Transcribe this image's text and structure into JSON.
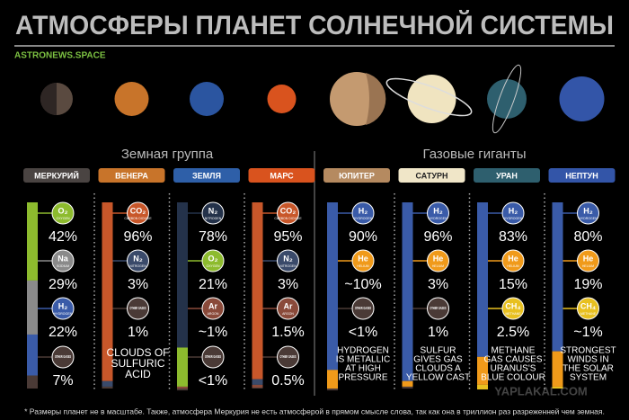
{
  "header": {
    "title": "АТМОСФЕРЫ ПЛАНЕТ СОЛНЕЧНОЙ СИСТЕМЫ",
    "source": "ASTRONEWS.SPACE"
  },
  "groups": [
    "Земная группа",
    "Газовые гиганты"
  ],
  "planets": [
    {
      "name": "МЕРКУРИЙ",
      "color": "#4a4442",
      "text_color": "#ffffff",
      "planet_color": "#5a4a40",
      "gases": [
        {
          "symbol": "O₂",
          "sub": "OXYGEN",
          "label": "42%",
          "value": 42,
          "color": "#8dbb2e"
        },
        {
          "symbol": "Na",
          "sub": "SODIUM",
          "label": "29%",
          "value": 29,
          "color": "#8a8a8a"
        },
        {
          "symbol": "H₂",
          "sub": "HYDROGEN",
          "label": "22%",
          "value": 22,
          "color": "#3a5ba8"
        },
        {
          "symbol": "OTHER GASES",
          "label": "7%",
          "value": 7,
          "color": "#4a3a36"
        }
      ]
    },
    {
      "name": "ВЕНЕРА",
      "color": "#c8742a",
      "text_color": "#ffffff",
      "planet_color": "#c8742a",
      "gases": [
        {
          "symbol": "CO₂",
          "sub": "CARBON DIOXIDE",
          "label": "96%",
          "value": 96,
          "color": "#c8572a"
        },
        {
          "symbol": "N₂",
          "sub": "NITROGEN",
          "label": "3%",
          "value": 3,
          "color": "#3a4a6a"
        },
        {
          "symbol": "OTHER GASES",
          "label": "1%",
          "value": 1,
          "color": "#4a3a36"
        }
      ],
      "note": [
        "CLOUDS OF",
        "SULFURIC",
        "ACID"
      ]
    },
    {
      "name": "ЗЕМЛЯ",
      "color": "#2e5fa8",
      "text_color": "#ffffff",
      "planet_color": "#2b55a0",
      "gases": [
        {
          "symbol": "N₂",
          "sub": "NITROGEN",
          "label": "78%",
          "value": 78,
          "color": "#24324a"
        },
        {
          "symbol": "O₂",
          "sub": "OXYGEN",
          "label": "21%",
          "value": 21,
          "color": "#8dbb2e"
        },
        {
          "symbol": "Ar",
          "sub": "ARGON",
          "label": "~1%",
          "value": 1,
          "color": "#8a4a3a"
        },
        {
          "symbol": "OTHER GASES",
          "label": "<1%",
          "value": 1,
          "color": "#4a3a36"
        }
      ]
    },
    {
      "name": "МАРС",
      "color": "#d9531e",
      "text_color": "#ffffff",
      "planet_color": "#d9531e",
      "gases": [
        {
          "symbol": "CO₂",
          "sub": "CARBON DIOXIDE",
          "label": "95%",
          "value": 95,
          "color": "#c8572a"
        },
        {
          "symbol": "N₂",
          "sub": "NITROGEN",
          "label": "3%",
          "value": 3,
          "color": "#3a4a6a"
        },
        {
          "symbol": "Ar",
          "sub": "ARGON",
          "label": "1.5%",
          "value": 1.5,
          "color": "#8a4a3a"
        },
        {
          "symbol": "OTHER GASES",
          "label": "0.5%",
          "value": 0.5,
          "color": "#4a3a36"
        }
      ]
    },
    {
      "name": "ЮПИТЕР",
      "color": "#b58a60",
      "text_color": "#ffffff",
      "planet_color": "#c49a70",
      "gases": [
        {
          "symbol": "H₂",
          "sub": "HYDROGEN",
          "label": "90%",
          "value": 90,
          "color": "#3a5ba8"
        },
        {
          "symbol": "He",
          "sub": "HELIUM",
          "label": "~10%",
          "value": 10,
          "color": "#f09a1a"
        },
        {
          "symbol": "OTHER GASES",
          "label": "<1%",
          "value": 1,
          "color": "#4a3a36"
        }
      ],
      "note": [
        "HYDROGEN",
        "IS METALLIC",
        "AT HIGH",
        "PRESSURE"
      ]
    },
    {
      "name": "САТУРН",
      "color": "#f0e6c8",
      "text_color": "#222222",
      "planet_color": "#f0e4c0",
      "gases": [
        {
          "symbol": "H₂",
          "sub": "HYDROGEN",
          "label": "96%",
          "value": 96,
          "color": "#3a5ba8"
        },
        {
          "symbol": "He",
          "sub": "HELIUM",
          "label": "3%",
          "value": 3,
          "color": "#f09a1a"
        },
        {
          "symbol": "OTHER GASES",
          "label": "1%",
          "value": 1,
          "color": "#4a3a36"
        }
      ],
      "note": [
        "SULFUR",
        "GIVES GAS",
        "CLOUDS A",
        "YELLOW CAST"
      ]
    },
    {
      "name": "УРАН",
      "color": "#2e5f6e",
      "text_color": "#ffffff",
      "planet_color": "#2e5f6e",
      "gases": [
        {
          "symbol": "H₂",
          "sub": "HYDROGEN",
          "label": "83%",
          "value": 83,
          "color": "#3a5ba8"
        },
        {
          "symbol": "He",
          "sub": "HELIUM",
          "label": "15%",
          "value": 15,
          "color": "#f09a1a"
        },
        {
          "symbol": "CH₄",
          "sub": "METHANE",
          "label": "2.5%",
          "value": 2.5,
          "color": "#e8c020"
        }
      ],
      "note": [
        "METHANE",
        "GAS CAUSES",
        "URANUS'S",
        "BLUE COLOUR"
      ]
    },
    {
      "name": "НЕПТУН",
      "color": "#3355a8",
      "text_color": "#ffffff",
      "planet_color": "#3355a8",
      "gases": [
        {
          "symbol": "H₂",
          "sub": "HYDROGEN",
          "label": "80%",
          "value": 80,
          "color": "#3a5ba8"
        },
        {
          "symbol": "He",
          "sub": "HELIUM",
          "label": "19%",
          "value": 19,
          "color": "#f09a1a"
        },
        {
          "symbol": "CH₄",
          "sub": "METHANE",
          "label": "~1%",
          "value": 1,
          "color": "#e8c020"
        }
      ],
      "note": [
        "STRONGEST",
        "WINDS IN",
        "THE SOLAR",
        "SYSTEM"
      ]
    }
  ],
  "footnote": "* Размеры планет не в масштабе. Также,  атмосфера Меркурия не есть атмосферой в прямом смысле слова, так как она в триллион раз разреженней чем земная.",
  "watermark": "YAPLAKAL.COM"
}
